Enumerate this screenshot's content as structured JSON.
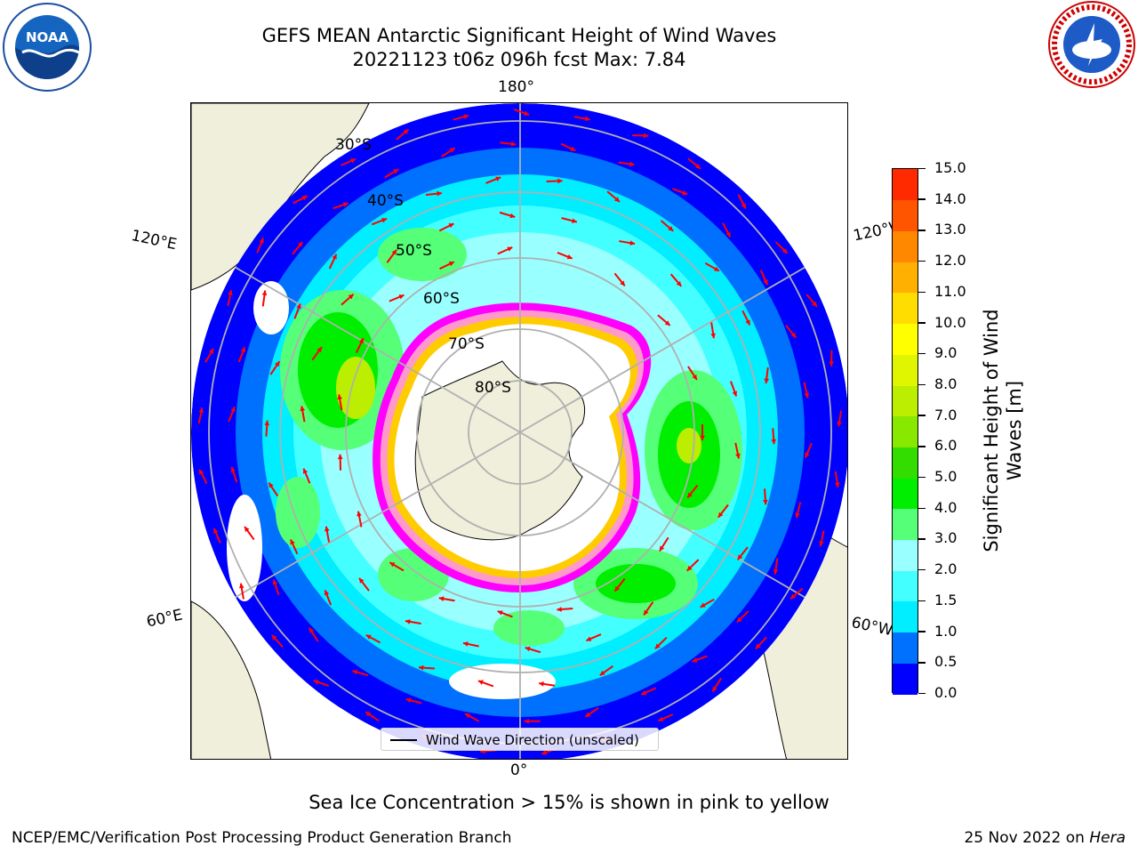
{
  "title": {
    "line1": "GEFS MEAN Antarctic Significant Height of Wind Waves",
    "line2": "20221123 t06z 096h fcst   Max: 7.84"
  },
  "logos": {
    "left_icon": "noaa-logo-icon",
    "left_text": "NOAA",
    "right_icon": "nws-logo-icon",
    "right_text": "NATIONAL WEATHER SERVICE"
  },
  "map": {
    "projection": "south-polar-stereographic",
    "land_color": "#efefdb",
    "ocean_no_data_color": "#ffffff",
    "lon_labels": {
      "top": "180°",
      "bottom": "0°",
      "upper_left": "120°E",
      "upper_right": "120°W",
      "lower_left": "60°E",
      "lower_right": "60°W"
    },
    "lat_labels": [
      "30°S",
      "40°S",
      "50°S",
      "60°S",
      "70°S",
      "80°S"
    ],
    "arrow_color": "#ff0000",
    "ice_colors": [
      "#ff00ff",
      "#ff99cc",
      "#ffcc00",
      "#ffff66"
    ]
  },
  "colorbar": {
    "label": "Significant Height of Wind Waves [m]",
    "ticks": [
      "0.0",
      "0.5",
      "1.0",
      "1.5",
      "2.0",
      "3.0",
      "4.0",
      "5.0",
      "6.0",
      "7.0",
      "8.0",
      "9.0",
      "10.0",
      "11.0",
      "12.0",
      "13.0",
      "14.0",
      "15.0"
    ],
    "colors": [
      "#0000ff",
      "#0070ff",
      "#00eeff",
      "#44ffff",
      "#99ffff",
      "#55ff77",
      "#00ee00",
      "#33dd00",
      "#88e800",
      "#bbee00",
      "#e0f500",
      "#ffff00",
      "#ffdd00",
      "#ffb000",
      "#ff8800",
      "#ff5500",
      "#ff2a00"
    ]
  },
  "legend": {
    "label": "Wind Wave Direction (unscaled)"
  },
  "caption": "Sea Ice Concentration > 15% is shown in pink to yellow",
  "footer": {
    "left": "NCEP/EMC/Verification Post Processing Product Generation Branch",
    "right_prefix": "25 Nov 2022 on ",
    "right_host": "Hera"
  }
}
